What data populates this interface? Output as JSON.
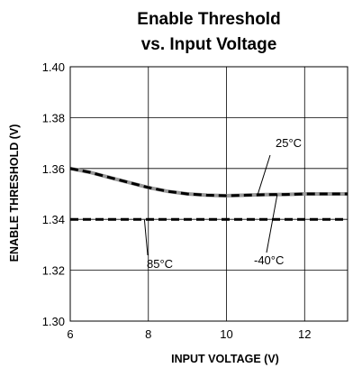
{
  "chart_data": {
    "type": "line",
    "title_line1": "Enable Threshold",
    "title_line2": "vs. Input Voltage",
    "xlabel": "INPUT VOLTAGE (V)",
    "ylabel": "ENABLE THRESHOLD (V)",
    "xlim": [
      6,
      13.1
    ],
    "ylim": [
      1.3,
      1.4
    ],
    "xticks": [
      6,
      8,
      10,
      12
    ],
    "xtick_labels": [
      "6",
      "8",
      "10",
      "12"
    ],
    "yticks": [
      1.3,
      1.32,
      1.34,
      1.36,
      1.38,
      1.4
    ],
    "ytick_labels": [
      "1.30",
      "1.32",
      "1.34",
      "1.36",
      "1.38",
      "1.40"
    ],
    "grid": true,
    "series": [
      {
        "name": "25°C",
        "style": "solid",
        "color": "#999999",
        "x": [
          6,
          6.5,
          7,
          7.5,
          8,
          8.5,
          9,
          9.5,
          10,
          10.5,
          11,
          11.5,
          12,
          12.5,
          13.1
        ],
        "y": [
          1.36,
          1.3585,
          1.3565,
          1.3545,
          1.3525,
          1.351,
          1.35,
          1.3495,
          1.3493,
          1.3495,
          1.3497,
          1.3498,
          1.35,
          1.35,
          1.35
        ]
      },
      {
        "name": "-40°C",
        "style": "dashed",
        "color": "#000000",
        "x": [
          6,
          6.5,
          7,
          7.5,
          8,
          8.5,
          9,
          9.5,
          10,
          10.5,
          11,
          11.5,
          12,
          12.5,
          13.1
        ],
        "y": [
          1.36,
          1.3585,
          1.3565,
          1.3545,
          1.3525,
          1.351,
          1.35,
          1.3495,
          1.3493,
          1.3495,
          1.3497,
          1.3498,
          1.35,
          1.35,
          1.35
        ]
      },
      {
        "name": "85°C",
        "style": "dashed",
        "color": "#000000",
        "x": [
          6,
          13.1
        ],
        "y": [
          1.34,
          1.34
        ]
      }
    ],
    "annotations": [
      {
        "text": "25°C",
        "point": [
          10.8,
          1.3498
        ]
      },
      {
        "text": "-40°C",
        "point": [
          11.3,
          1.3498
        ]
      },
      {
        "text": "85°C",
        "point": [
          7.9,
          1.3398
        ]
      }
    ]
  }
}
